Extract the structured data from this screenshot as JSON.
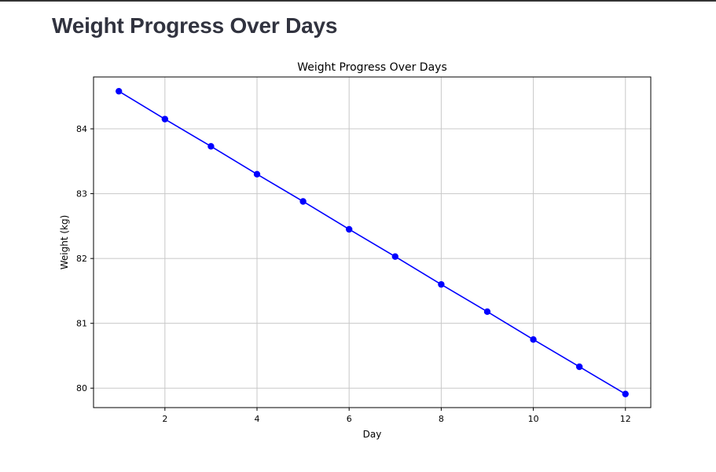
{
  "page": {
    "title": "Weight Progress Over Days"
  },
  "chart_data": {
    "type": "line",
    "title": "Weight Progress Over Days",
    "xlabel": "Day",
    "ylabel": "Weight (kg)",
    "x": [
      1,
      2,
      3,
      4,
      5,
      6,
      7,
      8,
      9,
      10,
      11,
      12
    ],
    "series": [
      {
        "values": [
          84.58,
          84.15,
          83.73,
          83.3,
          82.88,
          82.45,
          82.03,
          81.6,
          81.18,
          80.75,
          80.33,
          79.91
        ]
      }
    ],
    "xlim": [
      0.45,
      12.55
    ],
    "ylim": [
      79.7,
      84.8
    ],
    "x_ticks": [
      2,
      4,
      6,
      8,
      10,
      12
    ],
    "y_ticks": [
      80,
      81,
      82,
      83,
      84
    ],
    "grid": true,
    "marker": "circle",
    "colors": {
      "line": "#0000ff",
      "grid": "#c8c8c8",
      "axes": "#000000"
    }
  }
}
